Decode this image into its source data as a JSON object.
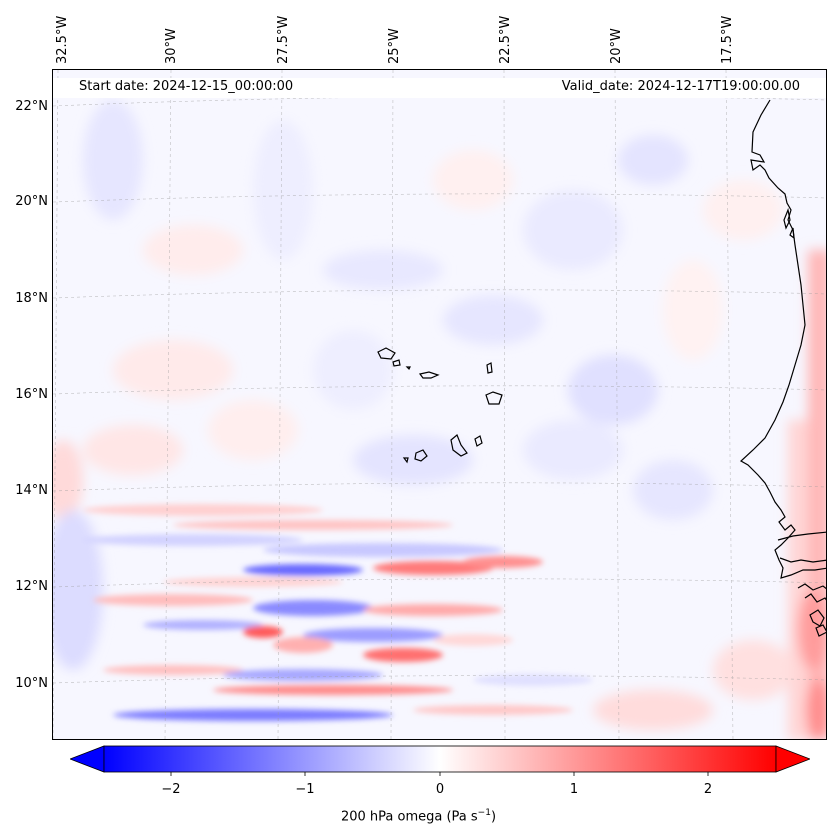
{
  "header": {
    "start_date": "Start date: 2024-12-15_00:00:00",
    "valid_date": "Valid_date: 2024-12-17T19:00:00.00"
  },
  "map": {
    "projection": "Lambert Conformal",
    "lat_ticks": [
      "22°N",
      "20°N",
      "18°N",
      "16°N",
      "14°N",
      "12°N",
      "10°N"
    ],
    "lon_ticks": [
      "32.5°W",
      "30°W",
      "27.5°W",
      "25°W",
      "22.5°W",
      "20°W",
      "17.5°W"
    ],
    "features": [
      "Cabo Verde islands",
      "West African coastline (Mauritania, Senegal, Gambia, Guinea-Bissau)"
    ]
  },
  "colorbar": {
    "label_main": "200 hPa omega (Pa s",
    "label_sup": "−1",
    "label_end": ")",
    "ticks": [
      "−2",
      "−1",
      "0",
      "1",
      "2"
    ],
    "tick_values": [
      -2,
      -1,
      0,
      1,
      2
    ],
    "range": [
      -2.5,
      2.5
    ],
    "extend": "both",
    "colormap": "bwr",
    "color_min": "#0000ff",
    "color_mid": "#ffffff",
    "color_max": "#ff0000"
  },
  "chart_data": {
    "type": "heatmap",
    "title": "",
    "variable": "200 hPa omega",
    "units": "Pa s^-1",
    "vmin": -2.5,
    "vmax": 2.5,
    "x_ticks": [
      "32.5°W",
      "30°W",
      "27.5°W",
      "25°W",
      "22.5°W",
      "20°W",
      "17.5°W"
    ],
    "y_ticks": [
      "22°N",
      "20°N",
      "18°N",
      "16°N",
      "14°N",
      "12°N",
      "10°N"
    ],
    "colorbar_ticks": [
      -2,
      -1,
      0,
      1,
      2
    ]
  }
}
